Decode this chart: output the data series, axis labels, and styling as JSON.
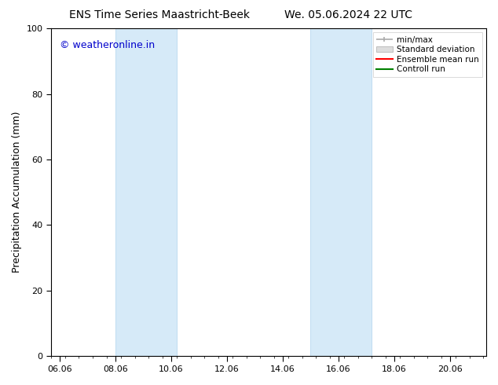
{
  "title_left": "ENS Time Series Maastricht-Beek",
  "title_right": "We. 05.06.2024 22 UTC",
  "ylabel": "Precipitation Accumulation (mm)",
  "watermark": "© weatheronline.in",
  "ylim": [
    0,
    100
  ],
  "yticks": [
    0,
    20,
    40,
    60,
    80,
    100
  ],
  "xtick_labels": [
    "06.06",
    "08.06",
    "10.06",
    "12.06",
    "14.06",
    "16.06",
    "18.06",
    "20.06"
  ],
  "xtick_positions": [
    0,
    2,
    4,
    6,
    8,
    10,
    12,
    14
  ],
  "xlim": [
    -0.3,
    15.3
  ],
  "shaded_bands": [
    {
      "x_start": 2.0,
      "x_end": 4.2
    },
    {
      "x_start": 9.0,
      "x_end": 11.2
    }
  ],
  "band_color": "#d6eaf8",
  "band_edge_color": "#b8d8f0",
  "legend_labels": [
    "min/max",
    "Standard deviation",
    "Ensemble mean run",
    "Controll run"
  ],
  "legend_colors": [
    "#aaaaaa",
    "#dddddd",
    "#ff0000",
    "#008000"
  ],
  "background_color": "#ffffff",
  "title_fontsize": 10,
  "axis_label_fontsize": 9,
  "tick_fontsize": 8,
  "watermark_color": "#0000cc",
  "watermark_fontsize": 9
}
